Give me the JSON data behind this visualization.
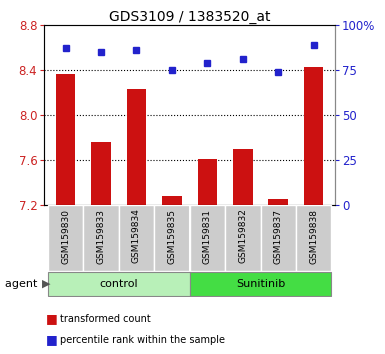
{
  "title": "GDS3109 / 1383520_at",
  "samples": [
    "GSM159830",
    "GSM159833",
    "GSM159834",
    "GSM159835",
    "GSM159831",
    "GSM159832",
    "GSM159837",
    "GSM159838"
  ],
  "red_values": [
    8.36,
    7.76,
    8.23,
    7.28,
    7.61,
    7.7,
    7.26,
    8.43
  ],
  "blue_values": [
    87,
    85,
    86,
    75,
    79,
    81,
    74,
    89
  ],
  "groups": [
    {
      "label": "control",
      "indices": [
        0,
        1,
        2,
        3
      ],
      "color": "#b8f0b8"
    },
    {
      "label": "Sunitinib",
      "indices": [
        4,
        5,
        6,
        7
      ],
      "color": "#44dd44"
    }
  ],
  "ylim_left": [
    7.2,
    8.8
  ],
  "ylim_right": [
    0,
    100
  ],
  "yticks_left": [
    7.2,
    7.6,
    8.0,
    8.4,
    8.8
  ],
  "yticks_right": [
    0,
    25,
    50,
    75,
    100
  ],
  "ytick_labels_right": [
    "0",
    "25",
    "50",
    "75",
    "100%"
  ],
  "grid_lines": [
    7.6,
    8.0,
    8.4
  ],
  "bar_color": "#cc1111",
  "dot_color": "#2222cc",
  "bar_width": 0.55,
  "tick_label_color_left": "#cc2222",
  "tick_label_color_right": "#2222cc",
  "plot_bg_color": "#ffffff",
  "sample_box_color": "#cccccc"
}
